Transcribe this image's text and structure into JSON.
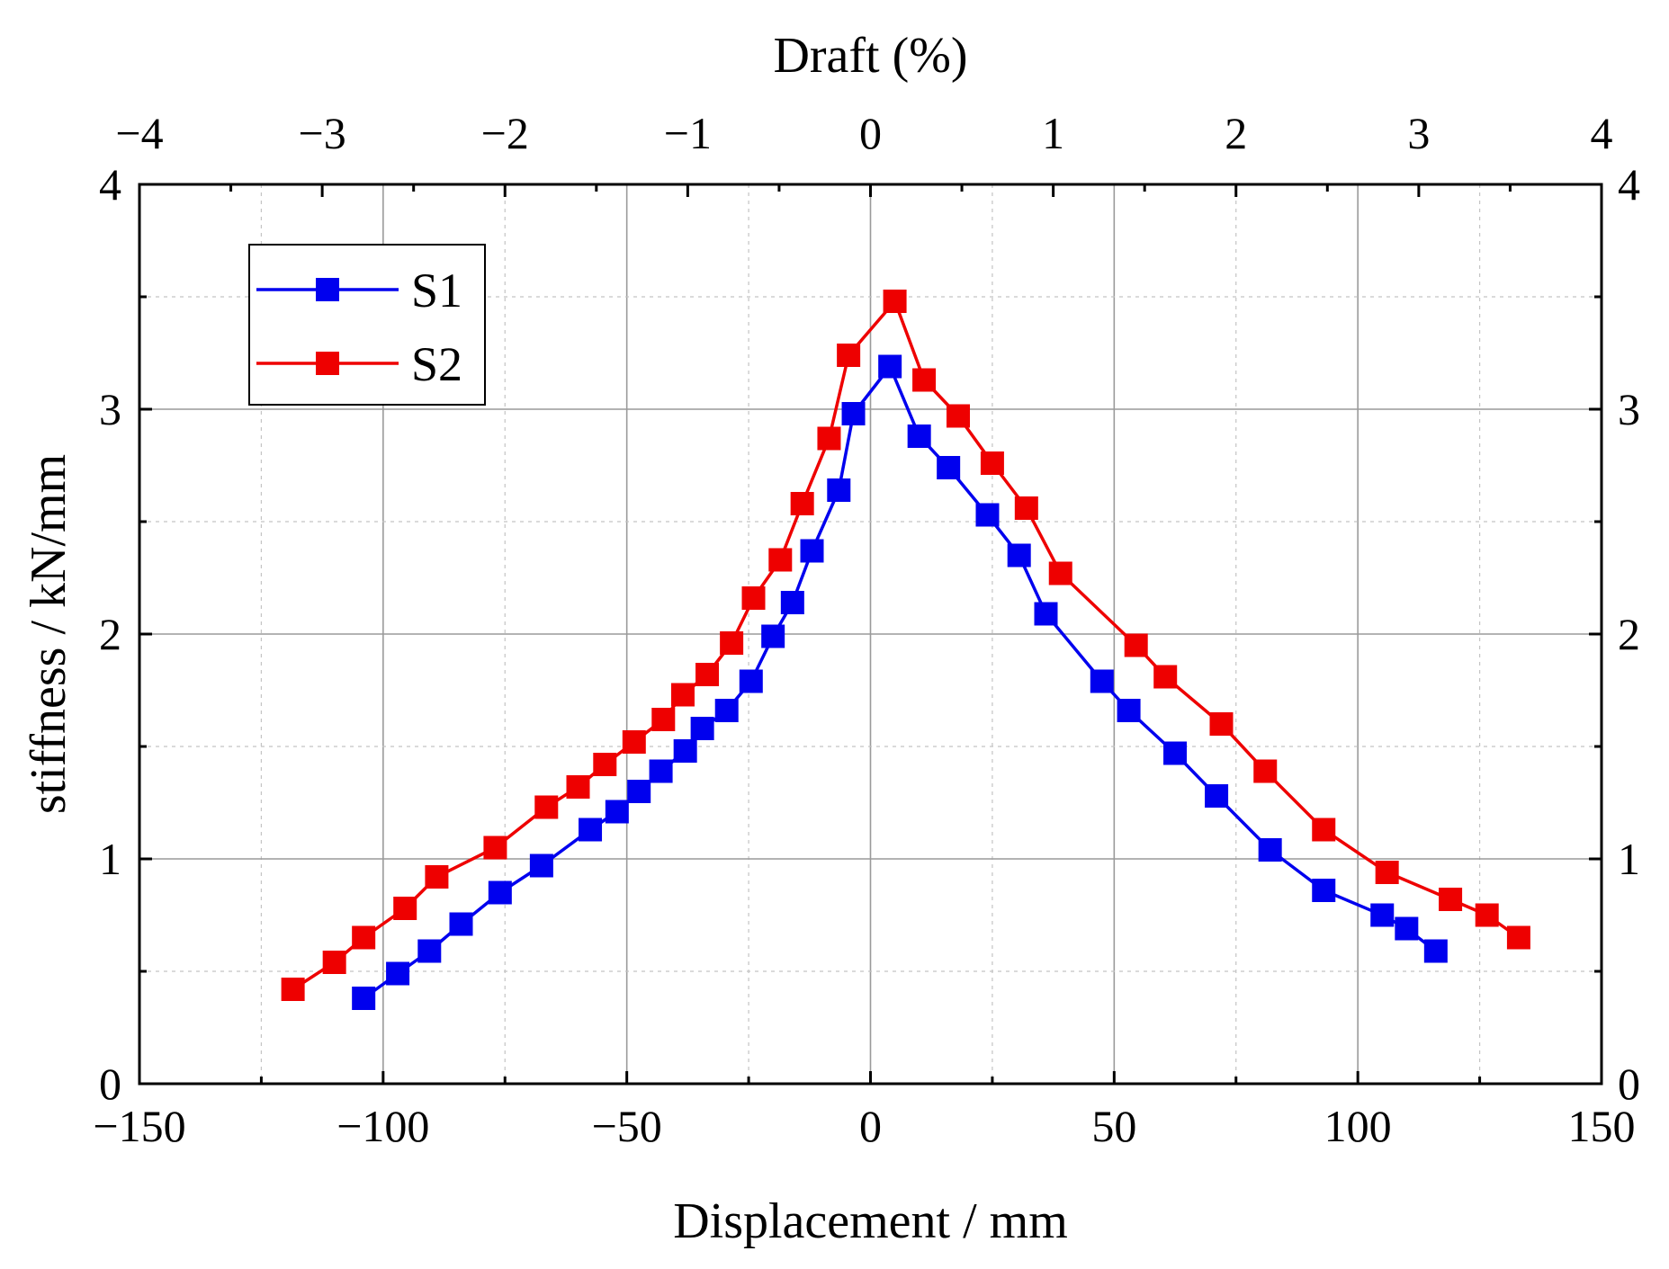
{
  "chart_data": {
    "type": "line",
    "top_axis_title": "Draft (%)",
    "xlabel": "Displacement / mm",
    "ylabel": "stiffness / kN/mm",
    "xlim": [
      -150,
      150
    ],
    "ylim": [
      0,
      4
    ],
    "top_xlim": [
      -4,
      4
    ],
    "x_ticks": [
      "−150",
      "−100",
      "−50",
      "0",
      "50",
      "100",
      "150"
    ],
    "x_tick_values": [
      -150,
      -100,
      -50,
      0,
      50,
      100,
      150
    ],
    "top_ticks": [
      "−4",
      "−3",
      "−2",
      "−1",
      "0",
      "1",
      "2",
      "3",
      "4"
    ],
    "top_tick_values": [
      -4,
      -3,
      -2,
      -1,
      0,
      1,
      2,
      3,
      4
    ],
    "y_ticks": [
      "0",
      "1",
      "2",
      "3",
      "4"
    ],
    "y_tick_values": [
      0,
      1,
      2,
      3,
      4
    ],
    "grid": true,
    "legend_position": "top-left",
    "series": [
      {
        "name": "S1",
        "color": "#0000ee",
        "x": [
          -104,
          -97,
          -90.5,
          -84,
          -76,
          -67.5,
          -57.5,
          -52,
          -47.5,
          -43,
          -38,
          -34.5,
          -29.5,
          -24.5,
          -20,
          -16,
          -12,
          -6.5,
          -3.5,
          4,
          10,
          16,
          24,
          30.5,
          36,
          47.5,
          53,
          62.5,
          71,
          82,
          93,
          105,
          110,
          116
        ],
        "y": [
          0.38,
          0.49,
          0.59,
          0.71,
          0.85,
          0.97,
          1.13,
          1.21,
          1.3,
          1.39,
          1.48,
          1.58,
          1.66,
          1.79,
          1.99,
          2.14,
          2.37,
          2.64,
          2.98,
          3.19,
          2.88,
          2.74,
          2.53,
          2.35,
          2.09,
          1.79,
          1.66,
          1.47,
          1.28,
          1.04,
          0.86,
          0.75,
          0.69,
          0.59
        ]
      },
      {
        "name": "S2",
        "color": "#ee0000",
        "x": [
          -118.5,
          -110,
          -104,
          -95.5,
          -89,
          -77,
          -66.5,
          -60,
          -54.5,
          -48.5,
          -42.5,
          -38.5,
          -33.5,
          -28.5,
          -24,
          -18.5,
          -14,
          -8.5,
          -4.5,
          5,
          11,
          18,
          25,
          32,
          39,
          54.5,
          60.5,
          72,
          81,
          93,
          106,
          119,
          126.5,
          133
        ],
        "y": [
          0.42,
          0.54,
          0.65,
          0.78,
          0.92,
          1.05,
          1.23,
          1.32,
          1.42,
          1.52,
          1.62,
          1.73,
          1.82,
          1.96,
          2.16,
          2.33,
          2.58,
          2.87,
          3.24,
          3.48,
          3.13,
          2.97,
          2.76,
          2.56,
          2.27,
          1.95,
          1.81,
          1.6,
          1.39,
          1.13,
          0.94,
          0.82,
          0.75,
          0.65
        ]
      }
    ]
  }
}
